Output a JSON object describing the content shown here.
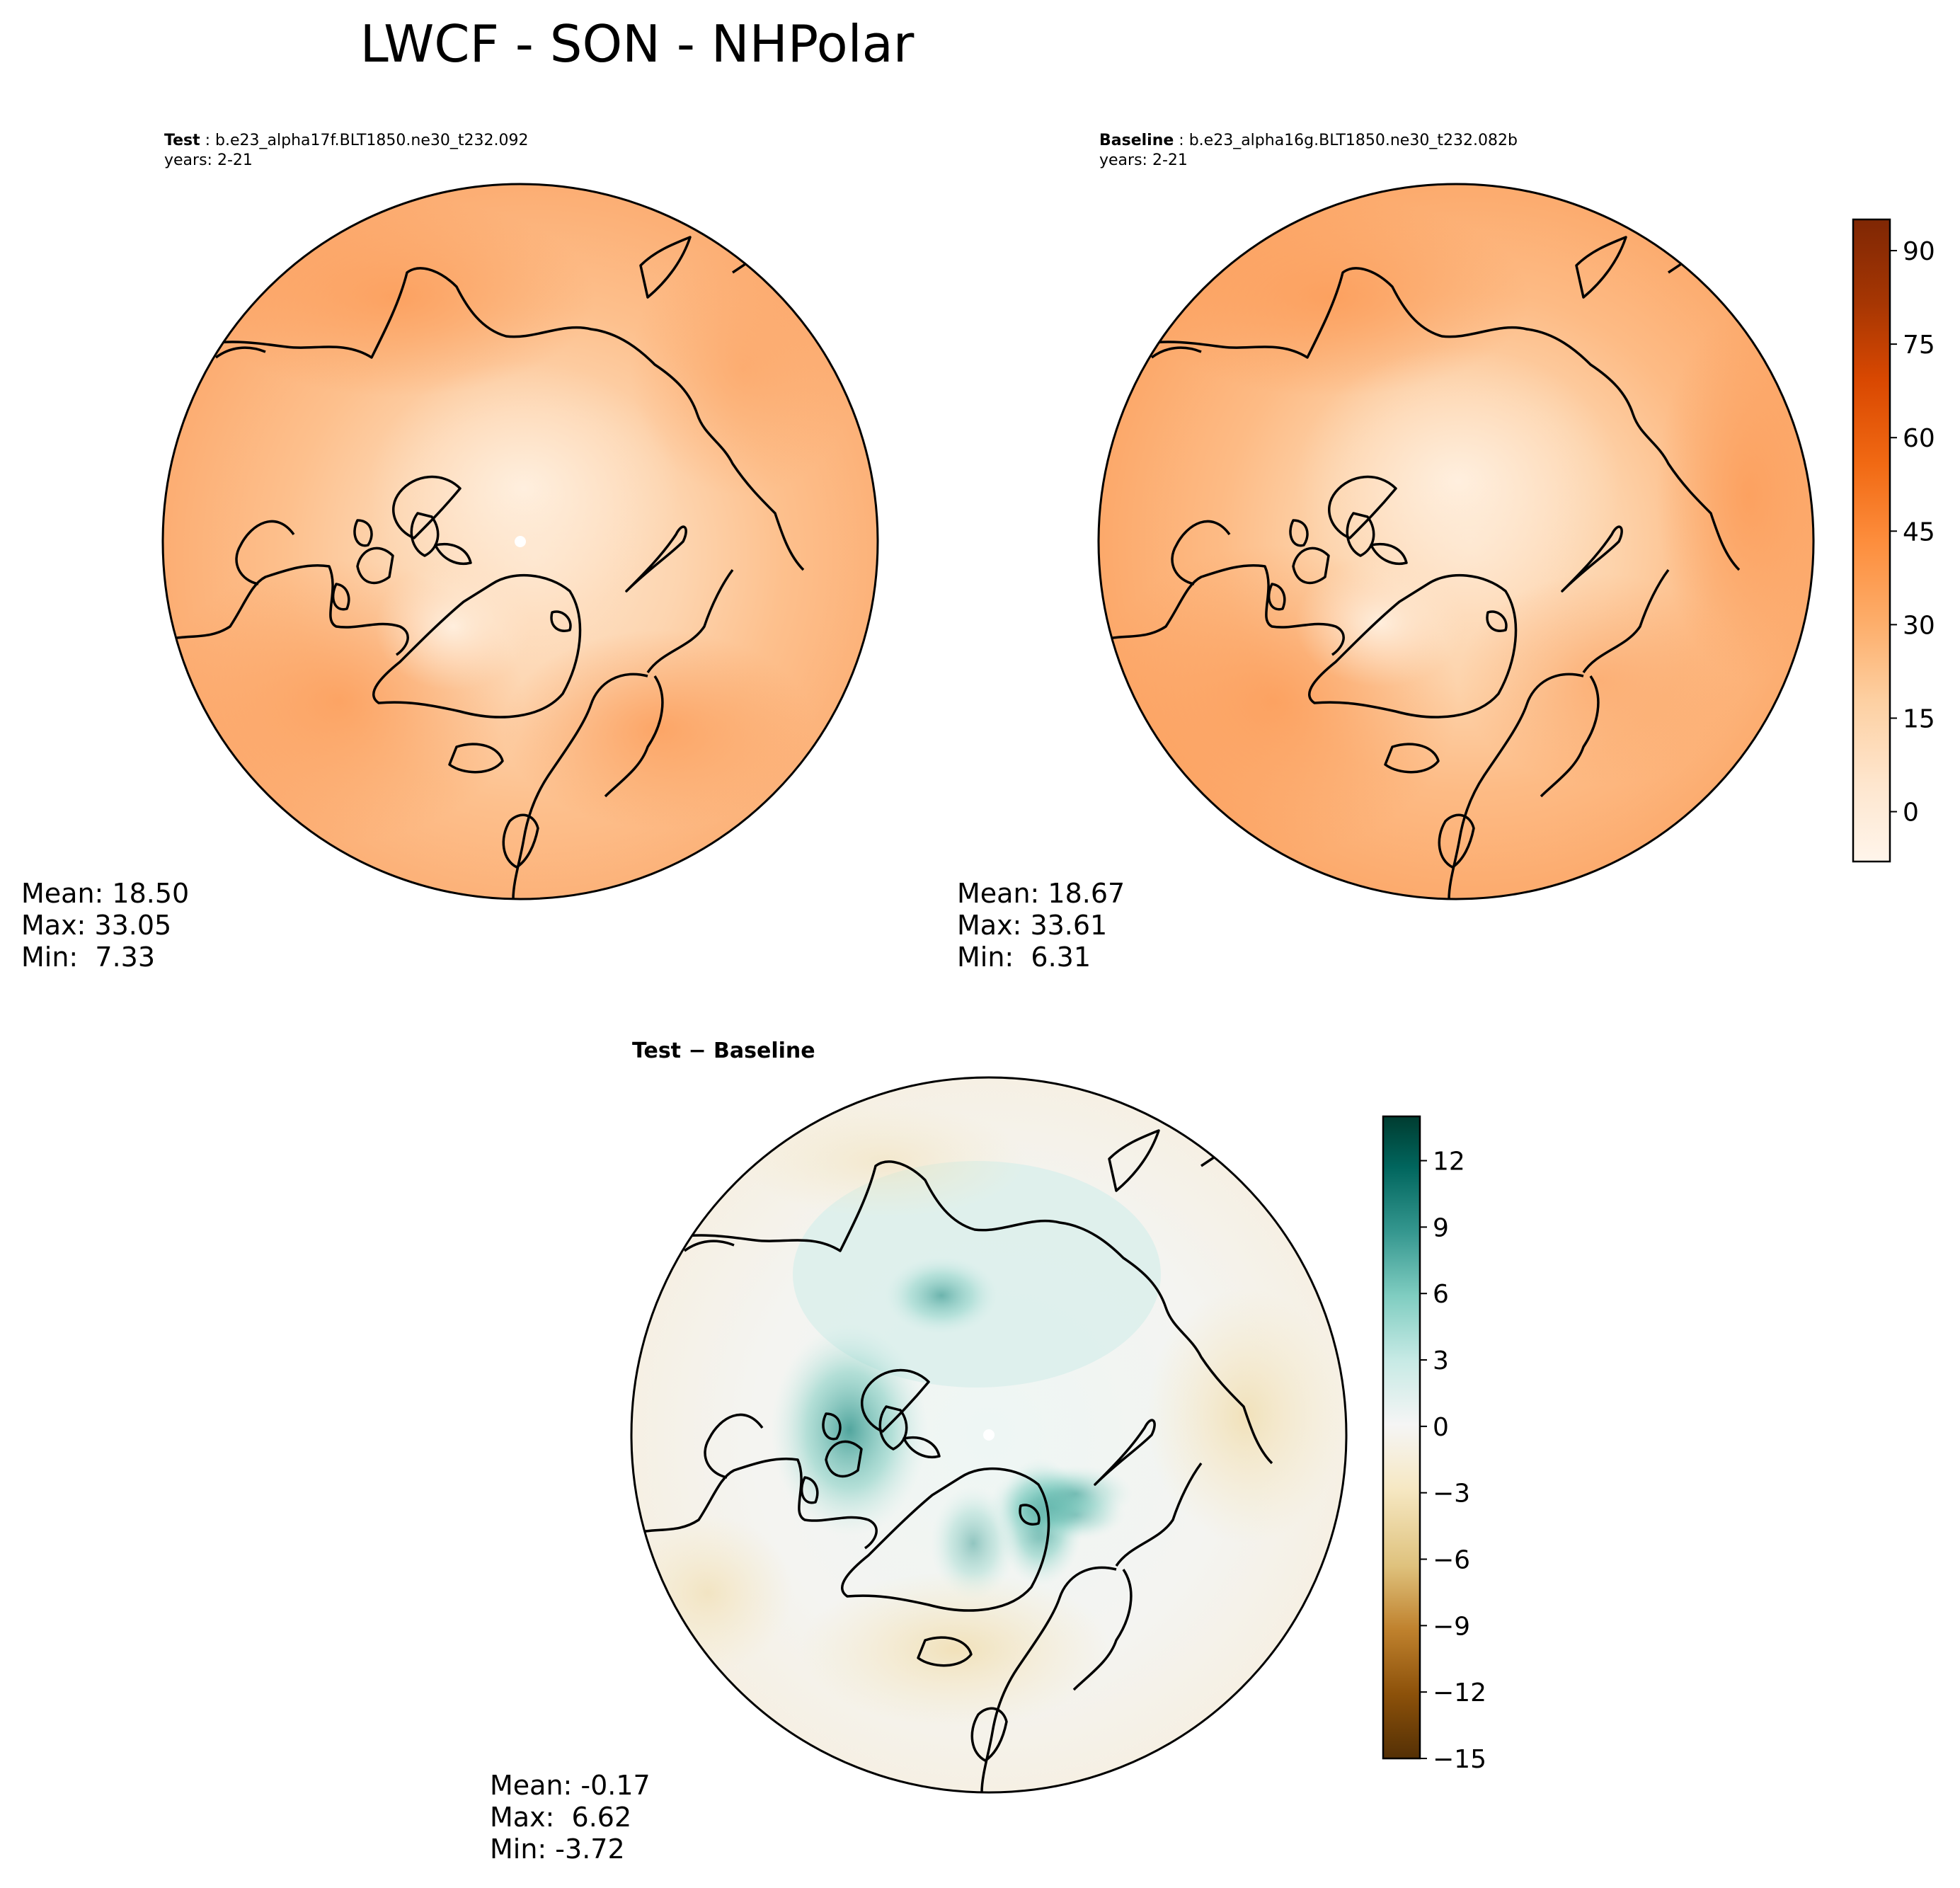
{
  "title": "LWCF - SON - NHPolar",
  "panels": {
    "test": {
      "label": "Test",
      "case": "b.e23_alpha17f.BLT1850.ne30_t232.092",
      "years": "years: 2-21",
      "mean": "Mean: 18.50",
      "max": "Max: 33.05",
      "min": "Min:  7.33"
    },
    "baseline": {
      "label": "Baseline",
      "case": "b.e23_alpha16g.BLT1850.ne30_t232.082b",
      "years": "years: 2-21",
      "mean": "Mean: 18.67",
      "max": "Max: 33.61",
      "min": "Min:  6.31"
    },
    "diff": {
      "title": "Test − Baseline",
      "mean": "Mean: -0.17",
      "max": "Max:  6.62",
      "min": "Min: -3.72"
    }
  },
  "chart_data": [
    {
      "type": "heatmap",
      "panel": "Test",
      "projection": "north-polar-stereographic",
      "colormap": "Oranges",
      "colorbar": {
        "range": [
          -8,
          95
        ],
        "ticks": [
          0,
          15,
          30,
          45,
          60,
          75,
          90
        ],
        "tick_labels": [
          "0",
          "15",
          "30",
          "45",
          "60",
          "75",
          "90"
        ]
      },
      "stats": {
        "mean": 18.5,
        "max": 33.05,
        "min": 7.33
      }
    },
    {
      "type": "heatmap",
      "panel": "Baseline",
      "projection": "north-polar-stereographic",
      "colormap": "Oranges",
      "colorbar": {
        "range": [
          -8,
          95
        ],
        "ticks": [
          0,
          15,
          30,
          45,
          60,
          75,
          90
        ],
        "tick_labels": [
          "0",
          "15",
          "30",
          "45",
          "60",
          "75",
          "90"
        ]
      },
      "stats": {
        "mean": 18.67,
        "max": 33.61,
        "min": 6.31
      }
    },
    {
      "type": "heatmap",
      "panel": "Test − Baseline",
      "projection": "north-polar-stereographic",
      "colormap": "BrBG",
      "colorbar": {
        "range": [
          -15,
          14
        ],
        "ticks": [
          -15,
          -12,
          -9,
          -6,
          -3,
          0,
          3,
          6,
          9,
          12
        ],
        "tick_labels": [
          "−15",
          "−12",
          "−9",
          "−6",
          "−3",
          "0",
          "3",
          "6",
          "9",
          "12"
        ]
      },
      "stats": {
        "mean": -0.17,
        "max": 6.62,
        "min": -3.72
      }
    }
  ],
  "colors": {
    "oranges": [
      "#fff5eb",
      "#fee6ce",
      "#fdd0a2",
      "#fdae6b",
      "#fd8d3c",
      "#f16913",
      "#d94801",
      "#a63603",
      "#7f2704"
    ],
    "brbg": [
      "#543005",
      "#8c510a",
      "#bf812d",
      "#dfc27d",
      "#f6e8c3",
      "#f5f5f5",
      "#c7eae5",
      "#80cdc1",
      "#35978f",
      "#01665e",
      "#003c30"
    ]
  }
}
